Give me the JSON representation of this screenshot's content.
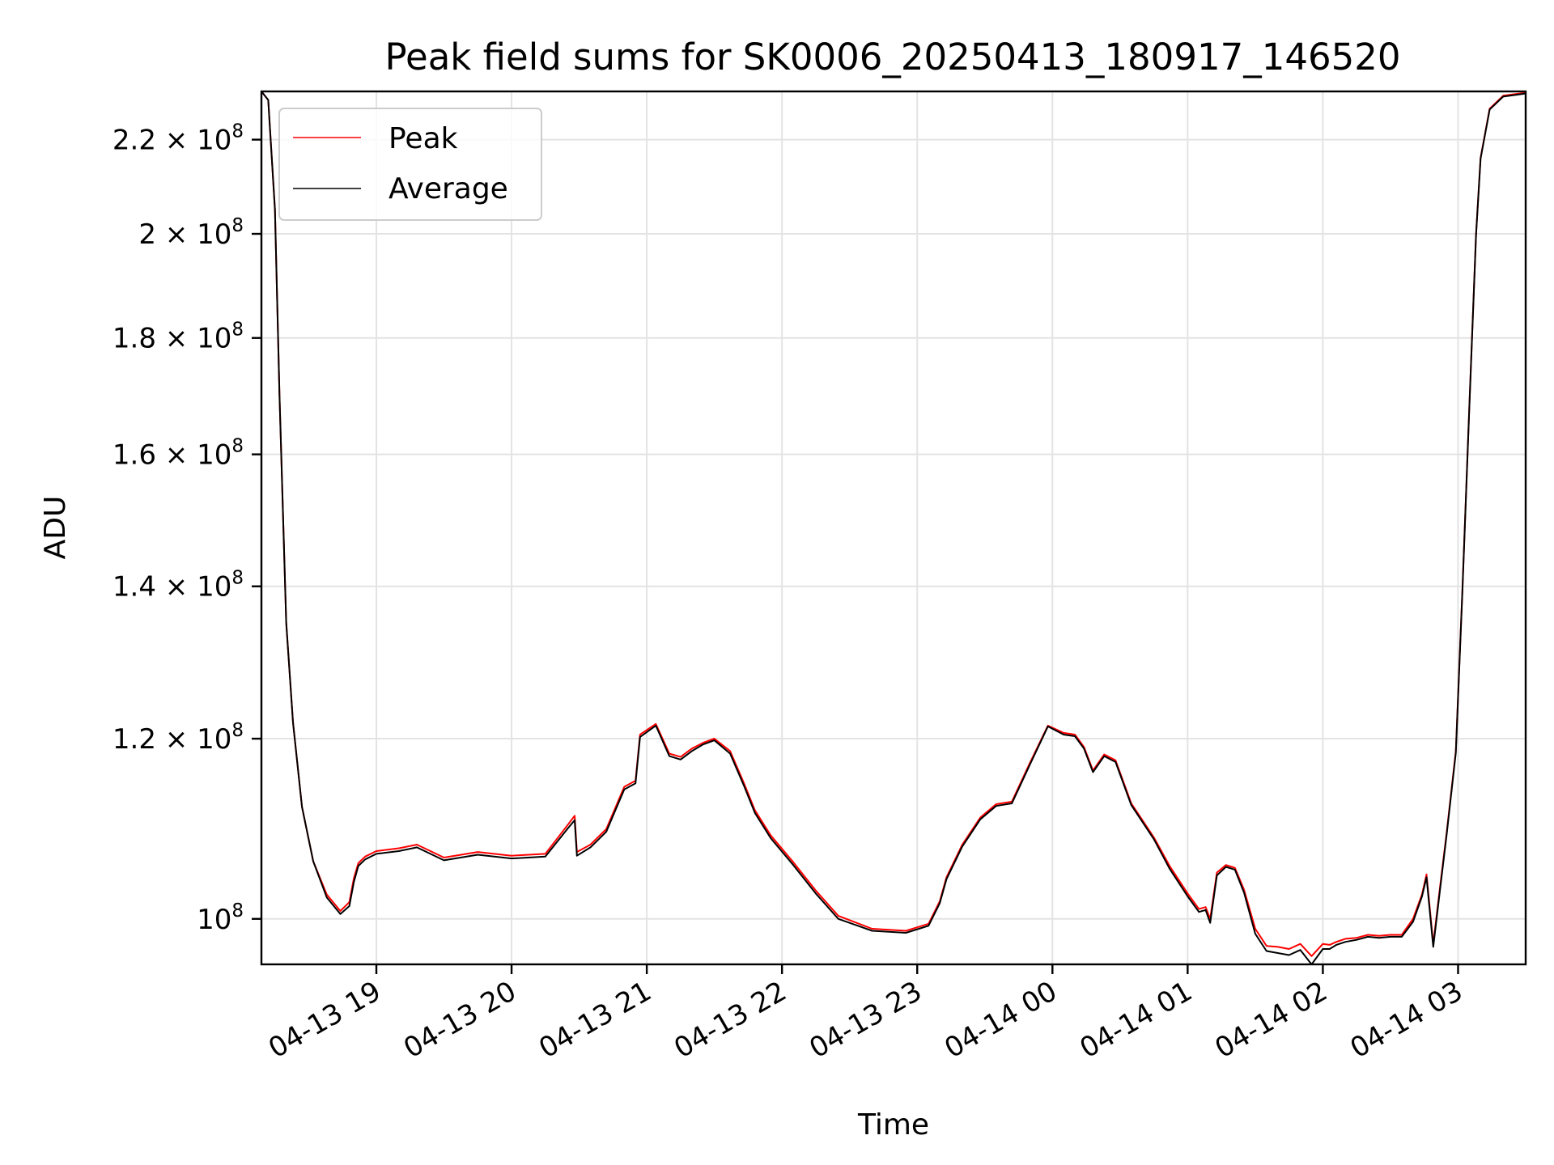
{
  "chart_data": {
    "type": "line",
    "title": "Peak field sums for SK0006_20250413_180917_146520",
    "xlabel": "Time",
    "ylabel": "ADU",
    "y_scale": "log",
    "grid": true,
    "legend_position": "upper-left",
    "xlim": [
      "2025-04-13 18:09",
      "2025-04-14 03:30"
    ],
    "ylim": [
      95500000,
      231000000
    ],
    "x_tick_labels": [
      {
        "label": "04-13 19",
        "t": "2025-04-13 19:00"
      },
      {
        "label": "04-13 20",
        "t": "2025-04-13 20:00"
      },
      {
        "label": "04-13 21",
        "t": "2025-04-13 21:00"
      },
      {
        "label": "04-13 22",
        "t": "2025-04-13 22:00"
      },
      {
        "label": "04-13 23",
        "t": "2025-04-13 23:00"
      },
      {
        "label": "04-14 00",
        "t": "2025-04-14 00:00"
      },
      {
        "label": "04-14 01",
        "t": "2025-04-14 01:00"
      },
      {
        "label": "04-14 02",
        "t": "2025-04-14 02:00"
      },
      {
        "label": "04-14 03",
        "t": "2025-04-14 03:00"
      }
    ],
    "y_ticks": [
      {
        "value": 100000000,
        "mantissa": "",
        "exponent": "8"
      },
      {
        "value": 120000000,
        "mantissa": "1.2",
        "exponent": "8"
      },
      {
        "value": 140000000,
        "mantissa": "1.4",
        "exponent": "8"
      },
      {
        "value": 160000000,
        "mantissa": "1.6",
        "exponent": "8"
      },
      {
        "value": 180000000,
        "mantissa": "1.8",
        "exponent": "8"
      },
      {
        "value": 200000000,
        "mantissa": "2",
        "exponent": "8"
      },
      {
        "value": 220000000,
        "mantissa": "2.2",
        "exponent": "8"
      }
    ],
    "y_tick_format": {
      "times": "×",
      "base": "10"
    },
    "series": [
      {
        "name": "Peak",
        "color": "#ff0000",
        "x": [
          "2025-04-13 18:09",
          "2025-04-13 18:12",
          "2025-04-13 18:15",
          "2025-04-13 18:17",
          "2025-04-13 18:20",
          "2025-04-13 18:23",
          "2025-04-13 18:27",
          "2025-04-13 18:32",
          "2025-04-13 18:38",
          "2025-04-13 18:44",
          "2025-04-13 18:48",
          "2025-04-13 18:50",
          "2025-04-13 18:52",
          "2025-04-13 18:55",
          "2025-04-13 19:00",
          "2025-04-13 19:10",
          "2025-04-13 19:18",
          "2025-04-13 19:30",
          "2025-04-13 19:45",
          "2025-04-13 20:00",
          "2025-04-13 20:15",
          "2025-04-13 20:25",
          "2025-04-13 20:28",
          "2025-04-13 20:29",
          "2025-04-13 20:35",
          "2025-04-13 20:42",
          "2025-04-13 20:50",
          "2025-04-13 20:55",
          "2025-04-13 20:57",
          "2025-04-13 21:04",
          "2025-04-13 21:10",
          "2025-04-13 21:15",
          "2025-04-13 21:20",
          "2025-04-13 21:25",
          "2025-04-13 21:30",
          "2025-04-13 21:37",
          "2025-04-13 21:43",
          "2025-04-13 21:48",
          "2025-04-13 21:55",
          "2025-04-13 22:05",
          "2025-04-13 22:15",
          "2025-04-13 22:25",
          "2025-04-13 22:40",
          "2025-04-13 22:55",
          "2025-04-13 23:05",
          "2025-04-13 23:10",
          "2025-04-13 23:13",
          "2025-04-13 23:20",
          "2025-04-13 23:28",
          "2025-04-13 23:35",
          "2025-04-13 23:42",
          "2025-04-13 23:50",
          "2025-04-13 23:58",
          "2025-04-14 00:05",
          "2025-04-14 00:10",
          "2025-04-14 00:14",
          "2025-04-14 00:18",
          "2025-04-14 00:23",
          "2025-04-14 00:28",
          "2025-04-14 00:35",
          "2025-04-14 00:45",
          "2025-04-14 00:52",
          "2025-04-14 01:00",
          "2025-04-14 01:05",
          "2025-04-14 01:08",
          "2025-04-14 01:10",
          "2025-04-14 01:13",
          "2025-04-14 01:17",
          "2025-04-14 01:21",
          "2025-04-14 01:25",
          "2025-04-14 01:30",
          "2025-04-14 01:35",
          "2025-04-14 01:40",
          "2025-04-14 01:45",
          "2025-04-14 01:50",
          "2025-04-14 01:55",
          "2025-04-14 02:00",
          "2025-04-14 02:03",
          "2025-04-14 02:06",
          "2025-04-14 02:10",
          "2025-04-14 02:15",
          "2025-04-14 02:20",
          "2025-04-14 02:25",
          "2025-04-14 02:30",
          "2025-04-14 02:35",
          "2025-04-14 02:40",
          "2025-04-14 02:44",
          "2025-04-14 02:46",
          "2025-04-14 02:49",
          "2025-04-14 02:52",
          "2025-04-14 02:55",
          "2025-04-14 02:59",
          "2025-04-14 03:02",
          "2025-04-14 03:05",
          "2025-04-14 03:08",
          "2025-04-14 03:10",
          "2025-04-14 03:14",
          "2025-04-14 03:20",
          "2025-04-14 03:30"
        ],
        "values": [
          231000000,
          229000000,
          205000000,
          170000000,
          135000000,
          122000000,
          112000000,
          106000000,
          102500000,
          100800000,
          101700000,
          104200000,
          105800000,
          106500000,
          107100000,
          107400000,
          107800000,
          106400000,
          107000000,
          106600000,
          106800000,
          110000000,
          111000000,
          107000000,
          107800000,
          109500000,
          114300000,
          115000000,
          120500000,
          121800000,
          118200000,
          117800000,
          118800000,
          119500000,
          120000000,
          118500000,
          114800000,
          111600000,
          108800000,
          105900000,
          102900000,
          100300000,
          99000000,
          98800000,
          99500000,
          101800000,
          104300000,
          107800000,
          110800000,
          112300000,
          112600000,
          117100000,
          121600000,
          120700000,
          120500000,
          119000000,
          116200000,
          118100000,
          117400000,
          112400000,
          108600000,
          105500000,
          102600000,
          101000000,
          101200000,
          100000000,
          104800000,
          105600000,
          105300000,
          103000000,
          99000000,
          97300000,
          97200000,
          97000000,
          97500000,
          96300000,
          97500000,
          97400000,
          97700000,
          98000000,
          98100000,
          98400000,
          98300000,
          98400000,
          98400000,
          100000000,
          102500000,
          104600000,
          97500000,
          103300000,
          109200000,
          118500000,
          140000000,
          168000000,
          200000000,
          216000000,
          227000000,
          230000000,
          230700000
        ]
      },
      {
        "name": "Average",
        "color": "#000000",
        "x": [
          "2025-04-13 18:09",
          "2025-04-13 18:12",
          "2025-04-13 18:15",
          "2025-04-13 18:17",
          "2025-04-13 18:20",
          "2025-04-13 18:23",
          "2025-04-13 18:27",
          "2025-04-13 18:32",
          "2025-04-13 18:38",
          "2025-04-13 18:44",
          "2025-04-13 18:48",
          "2025-04-13 18:50",
          "2025-04-13 18:52",
          "2025-04-13 18:55",
          "2025-04-13 19:00",
          "2025-04-13 19:10",
          "2025-04-13 19:18",
          "2025-04-13 19:30",
          "2025-04-13 19:45",
          "2025-04-13 20:00",
          "2025-04-13 20:15",
          "2025-04-13 20:25",
          "2025-04-13 20:28",
          "2025-04-13 20:29",
          "2025-04-13 20:35",
          "2025-04-13 20:42",
          "2025-04-13 20:50",
          "2025-04-13 20:55",
          "2025-04-13 20:57",
          "2025-04-13 21:04",
          "2025-04-13 21:10",
          "2025-04-13 21:15",
          "2025-04-13 21:20",
          "2025-04-13 21:25",
          "2025-04-13 21:30",
          "2025-04-13 21:37",
          "2025-04-13 21:43",
          "2025-04-13 21:48",
          "2025-04-13 21:55",
          "2025-04-13 22:05",
          "2025-04-13 22:15",
          "2025-04-13 22:25",
          "2025-04-13 22:40",
          "2025-04-13 22:55",
          "2025-04-13 23:05",
          "2025-04-13 23:10",
          "2025-04-13 23:13",
          "2025-04-13 23:20",
          "2025-04-13 23:28",
          "2025-04-13 23:35",
          "2025-04-13 23:42",
          "2025-04-13 23:50",
          "2025-04-13 23:58",
          "2025-04-14 00:05",
          "2025-04-14 00:10",
          "2025-04-14 00:14",
          "2025-04-14 00:18",
          "2025-04-14 00:23",
          "2025-04-14 00:28",
          "2025-04-14 00:35",
          "2025-04-14 00:45",
          "2025-04-14 00:52",
          "2025-04-14 01:00",
          "2025-04-14 01:05",
          "2025-04-14 01:08",
          "2025-04-14 01:10",
          "2025-04-14 01:13",
          "2025-04-14 01:17",
          "2025-04-14 01:21",
          "2025-04-14 01:25",
          "2025-04-14 01:30",
          "2025-04-14 01:35",
          "2025-04-14 01:40",
          "2025-04-14 01:45",
          "2025-04-14 01:50",
          "2025-04-14 01:55",
          "2025-04-14 02:00",
          "2025-04-14 02:03",
          "2025-04-14 02:06",
          "2025-04-14 02:10",
          "2025-04-14 02:15",
          "2025-04-14 02:20",
          "2025-04-14 02:25",
          "2025-04-14 02:30",
          "2025-04-14 02:35",
          "2025-04-14 02:40",
          "2025-04-14 02:44",
          "2025-04-14 02:46",
          "2025-04-14 02:49",
          "2025-04-14 02:52",
          "2025-04-14 02:55",
          "2025-04-14 02:59",
          "2025-04-14 03:02",
          "2025-04-14 03:05",
          "2025-04-14 03:08",
          "2025-04-14 03:10",
          "2025-04-14 03:14",
          "2025-04-14 03:20",
          "2025-04-14 03:30"
        ],
        "values": [
          231000000,
          229000000,
          205000000,
          170000000,
          135000000,
          122000000,
          112000000,
          106000000,
          102200000,
          100500000,
          101300000,
          103800000,
          105500000,
          106200000,
          106800000,
          107100000,
          107500000,
          106100000,
          106700000,
          106300000,
          106500000,
          109600000,
          110500000,
          106600000,
          107500000,
          109200000,
          114000000,
          114700000,
          120200000,
          121600000,
          117900000,
          117500000,
          118500000,
          119300000,
          119800000,
          118200000,
          114500000,
          111300000,
          108500000,
          105600000,
          102600000,
          100000000,
          98800000,
          98600000,
          99300000,
          101600000,
          104100000,
          107600000,
          110600000,
          112100000,
          112400000,
          116900000,
          121500000,
          120500000,
          120300000,
          118800000,
          116000000,
          117900000,
          117200000,
          112200000,
          108400000,
          105200000,
          102300000,
          100700000,
          100900000,
          99600000,
          104500000,
          105400000,
          105100000,
          102700000,
          98500000,
          96800000,
          96600000,
          96400000,
          96900000,
          95500000,
          97000000,
          97000000,
          97400000,
          97700000,
          97900000,
          98200000,
          98100000,
          98200000,
          98200000,
          99700000,
          102300000,
          104300000,
          97200000,
          103000000,
          109000000,
          118300000,
          139800000,
          167800000,
          199800000,
          215800000,
          226800000,
          229800000,
          230500000
        ]
      }
    ]
  }
}
